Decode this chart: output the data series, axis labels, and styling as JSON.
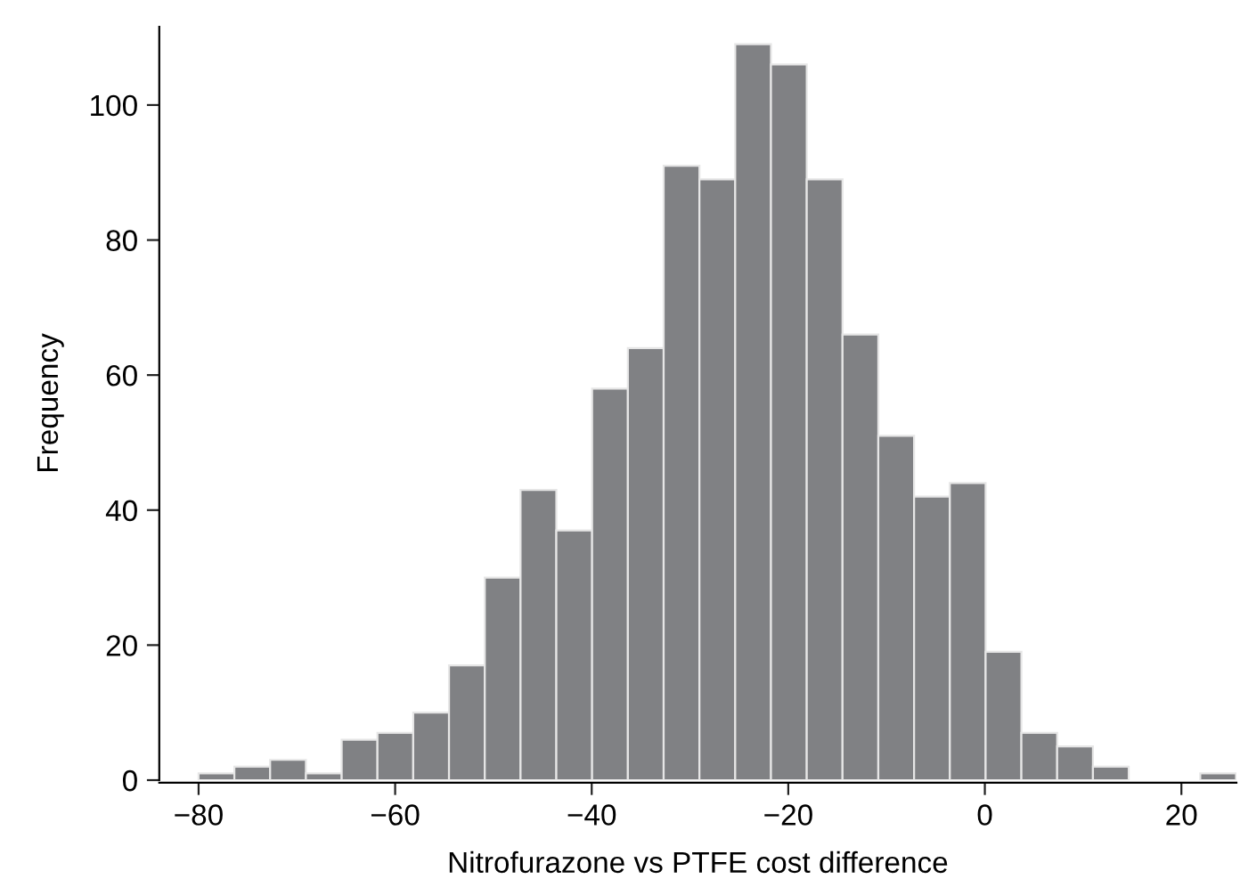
{
  "chart_data": {
    "type": "histogram",
    "xlabel": "Nitrofurazone vs PTFE cost difference",
    "ylabel": "Frequency",
    "bins": [
      -80,
      -76.36,
      -72.72,
      -69.08,
      -65.44,
      -61.8,
      -58.16,
      -54.52,
      -50.88,
      -47.24,
      -43.6,
      -39.96,
      -36.32,
      -32.68,
      -29.04,
      -25.4,
      -21.76,
      -18.12,
      -14.48,
      -10.84,
      -7.2,
      -3.56,
      0.08,
      3.72,
      7.36,
      11.0,
      14.64,
      18.28,
      21.92,
      25.56
    ],
    "values": [
      1,
      2,
      3,
      1,
      6,
      7,
      10,
      17,
      30,
      43,
      37,
      58,
      64,
      91,
      89,
      109,
      106,
      89,
      66,
      51,
      42,
      44,
      19,
      7,
      5,
      2,
      0,
      0,
      1
    ],
    "color": "#808184",
    "xlim": [
      -84,
      25.6
    ],
    "ylim": [
      0,
      111.6
    ],
    "xticks": [
      {
        "value": -80,
        "label": "−80"
      },
      {
        "value": -60,
        "label": "−60"
      },
      {
        "value": -40,
        "label": "−40"
      },
      {
        "value": -20,
        "label": "−20"
      },
      0,
      20
    ],
    "yticks": [
      0,
      20,
      40,
      60,
      80,
      100
    ],
    "grid": false
  }
}
